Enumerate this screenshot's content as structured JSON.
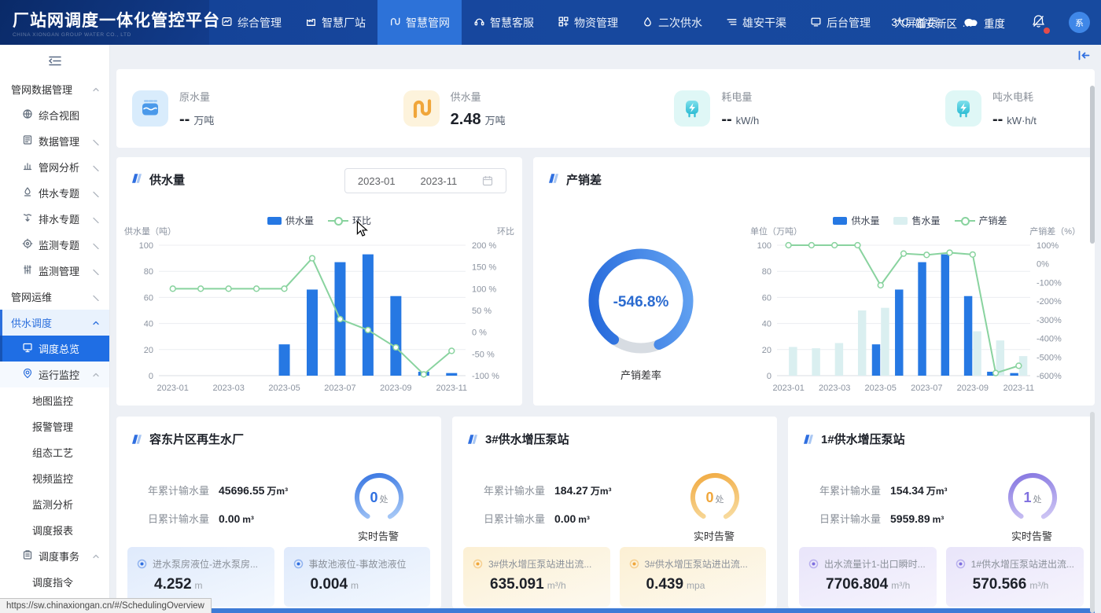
{
  "app": {
    "title": "厂站网调度一体化管控平台",
    "subtitle": "CHINA XIONGAN GROUP WATER CO., LTD"
  },
  "header": {
    "nav": [
      {
        "label": "综合管理",
        "icon": "overview-icon",
        "active": false
      },
      {
        "label": "智慧厂站",
        "icon": "factory-icon",
        "active": false
      },
      {
        "label": "智慧管网",
        "icon": "pipeline-icon",
        "active": true
      },
      {
        "label": "智慧客服",
        "icon": "headset-icon",
        "active": false
      },
      {
        "label": "物资管理",
        "icon": "materials-icon",
        "active": false
      },
      {
        "label": "二次供水",
        "icon": "secondary-water-icon",
        "active": false
      },
      {
        "label": "雄安干渠",
        "icon": "canal-icon",
        "active": false
      },
      {
        "label": "后台管理",
        "icon": "backend-icon",
        "active": false
      },
      {
        "label": "大屏首页",
        "icon": null,
        "active": false
      },
      {
        "label": "…",
        "icon": null,
        "active": false
      }
    ],
    "weather": {
      "temp": "3°C",
      "city": "雄安新区",
      "condition_icon": "cloud-icon",
      "aqi": "重度"
    },
    "avatar": "系"
  },
  "sidebar": {
    "items": [
      {
        "label": "管网数据管理",
        "level": 0,
        "chevron": "up"
      },
      {
        "label": "综合视图",
        "level": 1,
        "icon": "globe-icon"
      },
      {
        "label": "数据管理",
        "level": 1,
        "icon": "data-icon",
        "chevron": "down"
      },
      {
        "label": "管网分析",
        "level": 1,
        "icon": "analysis-icon",
        "chevron": "down"
      },
      {
        "label": "供水专题",
        "level": 1,
        "icon": "supply-icon",
        "chevron": "down"
      },
      {
        "label": "排水专题",
        "level": 1,
        "icon": "drain-icon",
        "chevron": "down"
      },
      {
        "label": "监测专题",
        "level": 1,
        "icon": "monitor-topic-icon",
        "chevron": "down"
      },
      {
        "label": "监测管理",
        "level": 1,
        "icon": "monitor-mgmt-icon",
        "chevron": "down"
      },
      {
        "label": "管网运维",
        "level": 0,
        "chevron": "down"
      },
      {
        "label": "供水调度",
        "level": 0,
        "chevron": "up",
        "state": "parent-active"
      },
      {
        "label": "调度总览",
        "level": 1,
        "icon": "overview-screen-icon",
        "state": "active"
      },
      {
        "label": "运行监控",
        "level": 1,
        "icon": "run-monitor-icon",
        "chevron": "up",
        "state": "section"
      },
      {
        "label": "地图监控",
        "level": 2
      },
      {
        "label": "报警管理",
        "level": 2
      },
      {
        "label": "组态工艺",
        "level": 2
      },
      {
        "label": "视频监控",
        "level": 2
      },
      {
        "label": "监测分析",
        "level": 2
      },
      {
        "label": "调度报表",
        "level": 2
      },
      {
        "label": "调度事务",
        "level": 1,
        "icon": "affairs-icon",
        "chevron": "up"
      },
      {
        "label": "调度指令",
        "level": 2
      }
    ]
  },
  "kpis": [
    {
      "label": "原水量",
      "value": "--",
      "unit": "万吨",
      "icon": "water-tank-icon",
      "theme": "blue"
    },
    {
      "label": "供水量",
      "value": "2.48",
      "unit": "万吨",
      "icon": "pipe-icon",
      "theme": "orange"
    },
    {
      "label": "耗电量",
      "value": "--",
      "unit": "kW/h",
      "icon": "power-plug-icon",
      "theme": "cyan"
    },
    {
      "label": "吨水电耗",
      "value": "--",
      "unit": "kW·h/t",
      "icon": "power-plug-icon",
      "theme": "cyan"
    }
  ],
  "supply_chart": {
    "date_start": "2023-01",
    "date_end": "2023-11"
  },
  "chart_data": [
    {
      "type": "bar+line",
      "title": "供水量",
      "categories": [
        "2023-01",
        "2023-02",
        "2023-03",
        "2023-04",
        "2023-05",
        "2023-06",
        "2023-07",
        "2023-08",
        "2023-09",
        "2023-10",
        "2023-11"
      ],
      "x_label_every": 2,
      "left_axis": {
        "name": "供水量（吨）",
        "min": 0,
        "max": 100,
        "step": 20
      },
      "right_axis": {
        "name": "环比",
        "min": -100,
        "max": 200,
        "step": 50,
        "format": "{v} %"
      },
      "series": [
        {
          "name": "供水量",
          "type": "bar",
          "color": "#2678e3",
          "values": [
            null,
            null,
            null,
            null,
            24,
            66,
            87,
            93,
            61,
            3,
            2
          ]
        },
        {
          "name": "环比",
          "type": "line",
          "color": "#89d39f",
          "axis": "right",
          "values": [
            100,
            100,
            100,
            100,
            100,
            170,
            30,
            5,
            -35,
            -97,
            -43
          ]
        }
      ]
    },
    {
      "type": "gauge+bar+line",
      "title": "产销差",
      "gauge": {
        "value": "-546.8%",
        "label": "产销差率",
        "fraction": 0.84
      },
      "categories": [
        "2023-01",
        "2023-02",
        "2023-03",
        "2023-04",
        "2023-05",
        "2023-06",
        "2023-07",
        "2023-08",
        "2023-09",
        "2023-10",
        "2023-11"
      ],
      "x_label_every": 2,
      "left_axis": {
        "name": "单位（万吨）",
        "min": 0,
        "max": 100,
        "step": 20
      },
      "right_axis": {
        "name": "产销差（%）",
        "min": -600,
        "max": 100,
        "step": 100,
        "format": "{v}%"
      },
      "series": [
        {
          "name": "供水量",
          "type": "bar",
          "color": "#2678e3",
          "values": [
            null,
            null,
            null,
            null,
            24,
            66,
            87,
            93,
            61,
            3,
            2
          ]
        },
        {
          "name": "售水量",
          "type": "bar",
          "color": "#daeff0",
          "values": [
            22,
            21,
            25,
            50,
            52,
            null,
            null,
            null,
            34,
            27,
            15
          ]
        },
        {
          "name": "产销差",
          "type": "line",
          "color": "#89d39f",
          "axis": "right",
          "values": [
            100,
            100,
            100,
            100,
            -115,
            55,
            48,
            60,
            50,
            -586,
            -546.8
          ]
        }
      ]
    }
  ],
  "stations": [
    {
      "name": "容东片区再生水厂",
      "theme": "blue",
      "yearly_label": "年累计输水量",
      "yearly_value": "45696.55",
      "yearly_unit": "万m³",
      "daily_label": "日累计输水量",
      "daily_value": "0.00",
      "daily_unit": "m³",
      "alarm_count": "0",
      "alarm_suffix": "处",
      "alarm_label": "实时告警",
      "metrics": [
        {
          "title": "进水泵房液位-进水泵房...",
          "value": "4.252",
          "unit": "m"
        },
        {
          "title": "事故池液位-事故池液位",
          "value": "0.004",
          "unit": "m"
        }
      ]
    },
    {
      "name": "3#供水增压泵站",
      "theme": "orange",
      "yearly_label": "年累计输水量",
      "yearly_value": "184.27",
      "yearly_unit": "万m³",
      "daily_label": "日累计输水量",
      "daily_value": "0.00",
      "daily_unit": "m³",
      "alarm_count": "0",
      "alarm_suffix": "处",
      "alarm_label": "实时告警",
      "metrics": [
        {
          "title": "3#供水增压泵站进出流...",
          "value": "635.091",
          "unit": "m³/h"
        },
        {
          "title": "3#供水增压泵站进出流...",
          "value": "0.439",
          "unit": "mpa"
        }
      ]
    },
    {
      "name": "1#供水增压泵站",
      "theme": "purple",
      "yearly_label": "年累计输水量",
      "yearly_value": "154.34",
      "yearly_unit": "万m³",
      "daily_label": "日累计输水量",
      "daily_value": "5959.89",
      "daily_unit": "m³",
      "alarm_count": "1",
      "alarm_suffix": "处",
      "alarm_label": "实时告警",
      "metrics": [
        {
          "title": "出水流量计1-出口瞬时...",
          "value": "7706.804",
          "unit": "m³/h"
        },
        {
          "title": "1#供水增压泵站进出流...",
          "value": "570.566",
          "unit": "m³/h"
        }
      ]
    }
  ],
  "status_bar": {
    "url": "https://sw.chinaxiongan.cn/#/SchedulingOverview"
  }
}
